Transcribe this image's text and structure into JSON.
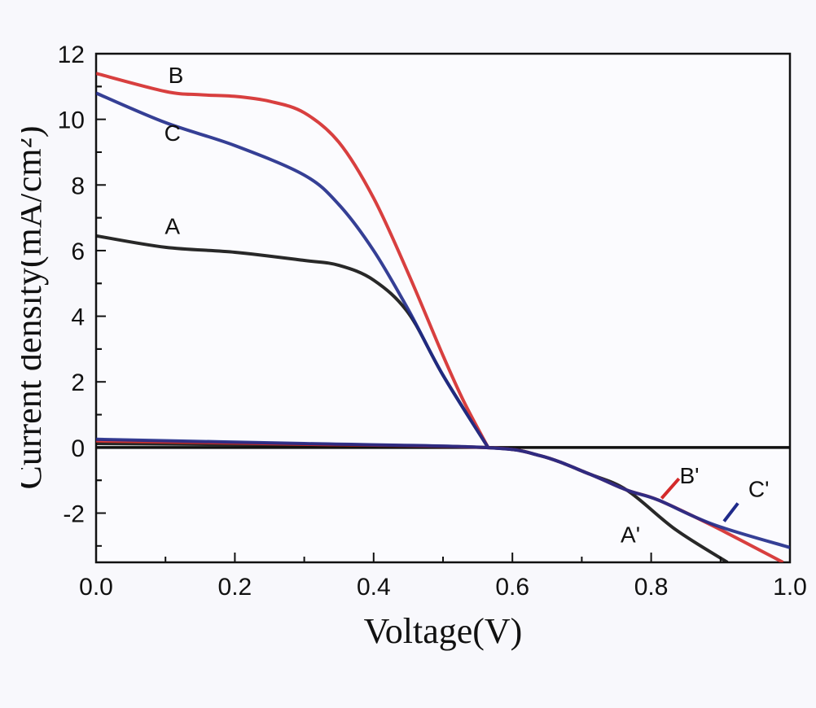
{
  "chart_data": {
    "type": "line",
    "title": "",
    "xlabel": "Voltage(V)",
    "ylabel": "Current density(mA/cm²)",
    "xlim": [
      0,
      1.0
    ],
    "ylim": [
      -3.5,
      12
    ],
    "xticks": [
      "0.0",
      "0.2",
      "0.4",
      "0.6",
      "0.8",
      "1.0"
    ],
    "yticks": [
      "-2",
      "0",
      "2",
      "4",
      "6",
      "8",
      "10",
      "12"
    ],
    "grid": false,
    "legend": "none (curves labeled inline)",
    "series": [
      {
        "name": "A",
        "color": "#111111",
        "x": [
          0,
          0.1,
          0.2,
          0.3,
          0.35,
          0.4,
          0.45,
          0.5,
          0.565
        ],
        "y": [
          6.45,
          6.1,
          5.95,
          5.7,
          5.55,
          5.1,
          4.1,
          2.2,
          0
        ]
      },
      {
        "name": "B",
        "color": "#d42a2a",
        "x": [
          0,
          0.1,
          0.15,
          0.2,
          0.25,
          0.3,
          0.35,
          0.4,
          0.45,
          0.5,
          0.53,
          0.565
        ],
        "y": [
          11.4,
          10.85,
          10.75,
          10.7,
          10.55,
          10.2,
          9.3,
          7.6,
          5.3,
          2.8,
          1.4,
          0
        ]
      },
      {
        "name": "C",
        "color": "#1f2a8a",
        "x": [
          0,
          0.1,
          0.2,
          0.3,
          0.35,
          0.4,
          0.45,
          0.5,
          0.565
        ],
        "y": [
          10.8,
          9.9,
          9.2,
          8.3,
          7.4,
          6.0,
          4.2,
          2.2,
          0
        ]
      },
      {
        "name": "A'",
        "color": "#111111",
        "x": [
          0,
          0.3,
          0.56,
          0.64,
          0.71,
          0.765,
          0.835,
          0.91
        ],
        "y": [
          0.12,
          0.07,
          0,
          -0.25,
          -0.8,
          -1.3,
          -2.5,
          -3.5
        ]
      },
      {
        "name": "B'",
        "color": "#d42a2a",
        "x": [
          0,
          0.3,
          0.56,
          0.64,
          0.71,
          0.765,
          0.81,
          0.89,
          0.99
        ],
        "y": [
          0.2,
          0.1,
          0,
          -0.25,
          -0.8,
          -1.3,
          -1.6,
          -2.4,
          -3.5
        ]
      },
      {
        "name": "C'",
        "color": "#1f2a8a",
        "x": [
          0,
          0.3,
          0.56,
          0.64,
          0.71,
          0.765,
          0.81,
          0.89,
          1.0
        ],
        "y": [
          0.25,
          0.12,
          0,
          -0.25,
          -0.8,
          -1.3,
          -1.6,
          -2.35,
          -3.05
        ]
      }
    ],
    "annotations": [
      {
        "text": "B",
        "x": 0.115,
        "y": 11.35
      },
      {
        "text": "C",
        "x": 0.11,
        "y": 9.6
      },
      {
        "text": "A",
        "x": 0.11,
        "y": 6.75
      },
      {
        "text": "B'",
        "x": 0.855,
        "y": -0.85,
        "leader_to": [
          0.815,
          -1.55
        ],
        "leader_from": [
          0.84,
          -0.95
        ]
      },
      {
        "text": "C'",
        "x": 0.955,
        "y": -1.25,
        "leader_to": [
          0.905,
          -2.25
        ],
        "leader_from": [
          0.925,
          -1.7
        ]
      },
      {
        "text": "A'",
        "x": 0.77,
        "y": -2.65
      }
    ]
  }
}
